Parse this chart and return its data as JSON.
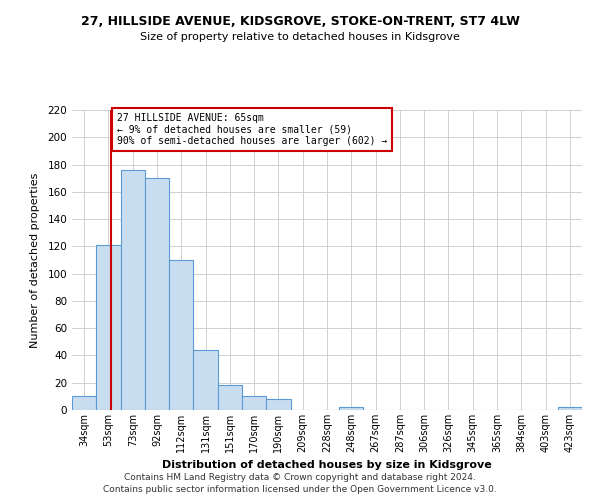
{
  "title": "27, HILLSIDE AVENUE, KIDSGROVE, STOKE-ON-TRENT, ST7 4LW",
  "subtitle": "Size of property relative to detached houses in Kidsgrove",
  "xlabel": "Distribution of detached houses by size in Kidsgrove",
  "ylabel": "Number of detached properties",
  "bin_labels": [
    "34sqm",
    "53sqm",
    "73sqm",
    "92sqm",
    "112sqm",
    "131sqm",
    "151sqm",
    "170sqm",
    "190sqm",
    "209sqm",
    "228sqm",
    "248sqm",
    "267sqm",
    "287sqm",
    "306sqm",
    "326sqm",
    "345sqm",
    "365sqm",
    "384sqm",
    "403sqm",
    "423sqm"
  ],
  "bar_heights": [
    10,
    121,
    176,
    170,
    110,
    44,
    18,
    10,
    8,
    0,
    0,
    2,
    0,
    0,
    0,
    0,
    0,
    0,
    0,
    0,
    2
  ],
  "bar_color": "#c8ddf0",
  "bar_edge_color": "#5b9bd5",
  "property_line_x": 65,
  "bin_edges_sqm": [
    34,
    53,
    73,
    92,
    112,
    131,
    151,
    170,
    190,
    209,
    228,
    248,
    267,
    287,
    306,
    326,
    345,
    365,
    384,
    403,
    423,
    442
  ],
  "annotation_text_line1": "27 HILLSIDE AVENUE: 65sqm",
  "annotation_text_line2": "← 9% of detached houses are smaller (59)",
  "annotation_text_line3": "90% of semi-detached houses are larger (602) →",
  "annotation_box_color": "#ffffff",
  "annotation_box_edge_color": "#cc0000",
  "red_line_color": "#cc0000",
  "ylim": [
    0,
    220
  ],
  "yticks": [
    0,
    20,
    40,
    60,
    80,
    100,
    120,
    140,
    160,
    180,
    200,
    220
  ],
  "footer_line1": "Contains HM Land Registry data © Crown copyright and database right 2024.",
  "footer_line2": "Contains public sector information licensed under the Open Government Licence v3.0."
}
